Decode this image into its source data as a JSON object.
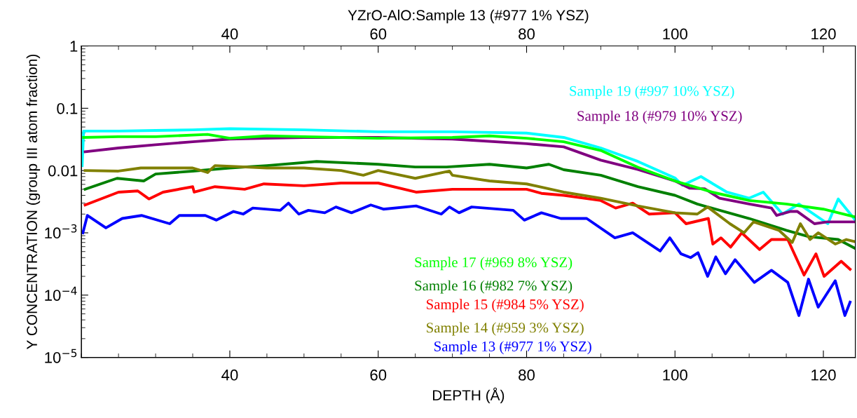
{
  "chart_data": {
    "type": "line",
    "title": "YZrO-AlO:Sample 13 (#977 1% YSZ)",
    "xlabel": "DEPTH (Å)",
    "ylabel": "Y CONCENTRATION (group III atom fraction)",
    "log": "y",
    "legend": false,
    "grid": false,
    "marker": "none",
    "line_style": "solid",
    "xlim": [
      20,
      124.3
    ],
    "xticks": [
      40,
      60,
      80,
      100,
      120
    ],
    "x2lim": [
      20,
      124.3
    ],
    "x2ticks": [
      40,
      60,
      80,
      100,
      120
    ],
    "ylim": [
      1e-05,
      1
    ],
    "yticks": [
      {
        "value": 1e-05,
        "label": "10$^{−5}$"
      },
      {
        "value": 0.0001,
        "label": "10$^{−4}$"
      },
      {
        "value": 0.001,
        "label": "10$^{−3}$"
      },
      {
        "value": 0.01,
        "label": "0.01"
      },
      {
        "value": 0.1,
        "label": "0.1"
      },
      {
        "value": 1,
        "label": "1"
      }
    ],
    "series": [
      {
        "name": "Sample 19 (#997 10% YSZ)",
        "color": "#00ffff",
        "x": [
          20.1,
          20.3,
          25,
          30,
          35,
          40,
          50,
          60,
          70,
          80,
          85,
          90,
          95,
          100,
          101,
          103.5,
          107,
          110,
          111.9,
          114.5,
          116.7,
          120.6,
          122,
          124.3
        ],
        "values": [
          0.012,
          0.043,
          0.043,
          0.044,
          0.045,
          0.047,
          0.045,
          0.042,
          0.042,
          0.04,
          0.034,
          0.023,
          0.014,
          0.0076,
          0.0058,
          0.008,
          0.0045,
          0.0036,
          0.0045,
          0.002,
          0.0029,
          0.0014,
          0.0035,
          0.0016
        ]
      },
      {
        "name": "Sample 18 (#979 10% YSZ)",
        "color": "#800080",
        "x": [
          20.5,
          25,
          30,
          35,
          40,
          45,
          50,
          60,
          70,
          80,
          85,
          90,
          95,
          100,
          102,
          104,
          106,
          110,
          113,
          113.7,
          115.5,
          116.5,
          118.8,
          120.5,
          124.3
        ],
        "values": [
          0.02,
          0.023,
          0.026,
          0.029,
          0.032,
          0.033,
          0.034,
          0.034,
          0.032,
          0.027,
          0.024,
          0.0147,
          0.0104,
          0.0068,
          0.0052,
          0.0051,
          0.0036,
          0.0029,
          0.0025,
          0.0019,
          0.0022,
          0.0022,
          0.0014,
          0.0015,
          0.0015
        ]
      },
      {
        "name": "Sample 17 (#969 8% YSZ)",
        "color": "#00ff00",
        "x": [
          20.3,
          25,
          30,
          37,
          40,
          45,
          50,
          60,
          70,
          75,
          80,
          85,
          90,
          95,
          100,
          105,
          110,
          115,
          120,
          124.3
        ],
        "values": [
          0.034,
          0.035,
          0.035,
          0.038,
          0.033,
          0.036,
          0.035,
          0.033,
          0.034,
          0.036,
          0.033,
          0.029,
          0.021,
          0.0113,
          0.0068,
          0.0045,
          0.0033,
          0.0029,
          0.0024,
          0.0018
        ]
      },
      {
        "name": "Sample 16 (#982 7% YSZ)",
        "color": "#008000",
        "x": [
          20.5,
          24.8,
          28.4,
          30,
          35,
          40,
          45,
          51.7,
          60,
          65,
          69.2,
          75,
          80,
          83,
          85,
          90,
          95,
          100,
          103,
          104.4,
          110,
          115,
          118,
          122,
          124.3
        ],
        "values": [
          0.005,
          0.0075,
          0.0068,
          0.0088,
          0.0098,
          0.011,
          0.012,
          0.014,
          0.0126,
          0.0114,
          0.0114,
          0.0126,
          0.011,
          0.0126,
          0.0103,
          0.0084,
          0.0055,
          0.004,
          0.0029,
          0.0026,
          0.0017,
          0.0011,
          0.00087,
          0.00078,
          0.00056
        ]
      },
      {
        "name": "Sample 15 (#984 5% YSZ)",
        "color": "#ff0000",
        "x": [
          20.5,
          25,
          27.6,
          29.1,
          31,
          35,
          35.2,
          38,
          42,
          44.6,
          50,
          55,
          60,
          65.1,
          70,
          75,
          80,
          82,
          85,
          90,
          92,
          94.3,
          96.5,
          100,
          101.5,
          104.5,
          105.1,
          106.2,
          107.5,
          109,
          111.4,
          113,
          115.2,
          117.4,
          119,
          120.1,
          122.4,
          123.6
        ],
        "values": [
          0.0028,
          0.0045,
          0.0047,
          0.0035,
          0.0045,
          0.0055,
          0.0045,
          0.0055,
          0.005,
          0.0061,
          0.0057,
          0.0063,
          0.0063,
          0.0045,
          0.005,
          0.005,
          0.005,
          0.0043,
          0.004,
          0.0033,
          0.0025,
          0.003,
          0.002,
          0.0021,
          0.0014,
          0.0017,
          0.00066,
          0.00083,
          0.00059,
          0.001,
          0.00054,
          0.00078,
          0.00078,
          0.00021,
          0.00046,
          0.0002,
          0.00035,
          0.00026
        ]
      },
      {
        "name": "Sample 14 (#959 3% YSZ)",
        "color": "#808000",
        "x": [
          20.5,
          25,
          28,
          35,
          37,
          38,
          45,
          50,
          55,
          58,
          60,
          65,
          69.6,
          70,
          75,
          80,
          85,
          90,
          95,
          100,
          103,
          104.4,
          107.4,
          109.3,
          110.6,
          114,
          115.8,
          116.9,
          118.2,
          119.3,
          121.6,
          123.1,
          124.3
        ],
        "values": [
          0.01,
          0.0098,
          0.011,
          0.011,
          0.0093,
          0.012,
          0.011,
          0.011,
          0.01,
          0.0084,
          0.01,
          0.0075,
          0.0098,
          0.0084,
          0.0068,
          0.0061,
          0.0045,
          0.0036,
          0.0027,
          0.0021,
          0.002,
          0.0026,
          0.0014,
          0.001,
          0.0015,
          0.0011,
          0.0007,
          0.0014,
          0.00078,
          0.001,
          0.00066,
          0.00078,
          0.00072
        ]
      },
      {
        "name": "Sample 13 (#977 1% YSZ)",
        "color": "#0000ff",
        "x": [
          20.2,
          20.8,
          23.3,
          25.5,
          28.1,
          31.9,
          33.2,
          36.7,
          38.2,
          40.5,
          41.8,
          43.1,
          46.8,
          47.9,
          49.3,
          50.6,
          52.8,
          54.3,
          56.4,
          59,
          60.7,
          65.1,
          68.5,
          69.6,
          70.9,
          72.6,
          78.2,
          79.7,
          82,
          84.6,
          88.1,
          91.9,
          94.3,
          98,
          99.3,
          100.8,
          102.1,
          103.1,
          104.4,
          105.5,
          106.8,
          108.1,
          110.7,
          113,
          115.2,
          116.7,
          118,
          119.3,
          121.6,
          122.9,
          123.6
        ],
        "values": [
          0.001,
          0.0019,
          0.0012,
          0.0017,
          0.0019,
          0.0014,
          0.0019,
          0.0019,
          0.0016,
          0.0022,
          0.002,
          0.0025,
          0.0023,
          0.003,
          0.002,
          0.0023,
          0.0021,
          0.0026,
          0.0021,
          0.0028,
          0.0024,
          0.0027,
          0.002,
          0.0026,
          0.0021,
          0.0026,
          0.0023,
          0.0016,
          0.0021,
          0.0017,
          0.0017,
          0.00083,
          0.001,
          0.00051,
          0.00083,
          0.00046,
          0.0004,
          0.00048,
          0.0002,
          0.00041,
          0.00022,
          0.00037,
          0.00016,
          0.00025,
          0.00016,
          4.7e-05,
          0.00018,
          6.4e-05,
          0.00017,
          4.7e-05,
          7.7e-05
        ]
      }
    ]
  }
}
